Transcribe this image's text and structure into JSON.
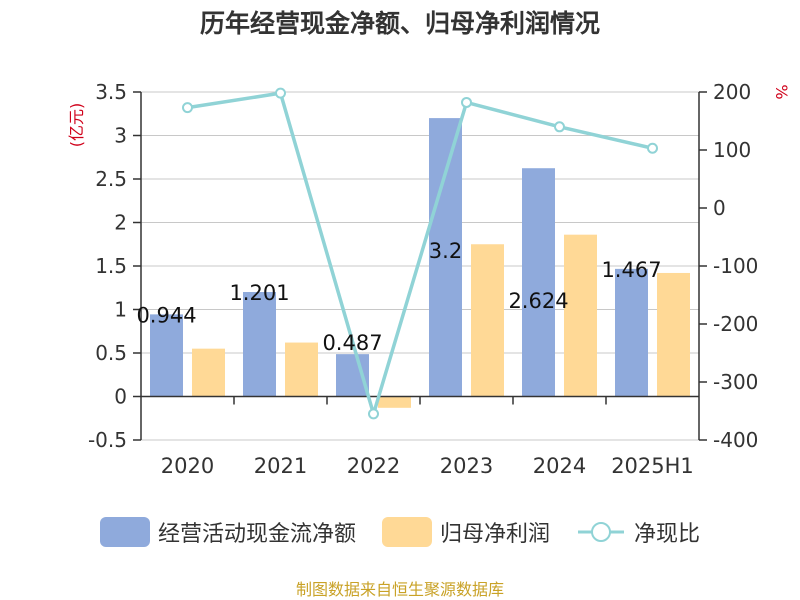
{
  "colors": {
    "operating_cash": "#8faadc",
    "net_profit": "#ffd996",
    "ratio_line": "#90d3d6",
    "axis": "#333333",
    "grid": "#c8c8c8",
    "unit_left": "#d0021b",
    "unit_right": "#d0021b",
    "source": "#c9a227"
  },
  "chart_data": {
    "type": "bar",
    "title": "历年经营现金净额、归母净利润情况",
    "categories": [
      "2020",
      "2021",
      "2022",
      "2023",
      "2024",
      "2025H1"
    ],
    "y_left": {
      "unit": "(亿元)",
      "ylim": [
        -0.5,
        3.5
      ],
      "ticks": [
        "-0.5",
        "0",
        "0.5",
        "1",
        "1.5",
        "2",
        "2.5",
        "3",
        "3.5"
      ]
    },
    "y_right": {
      "unit": "%",
      "ylim": [
        -400,
        200
      ],
      "ticks": [
        "-400",
        "-300",
        "-200",
        "-100",
        "0",
        "100",
        "200"
      ]
    },
    "grid": true,
    "legend_position": "bottom",
    "series": [
      {
        "name": "经营活动现金流净额",
        "kind": "bar",
        "axis": "left",
        "values": [
          0.944,
          1.201,
          0.487,
          3.2,
          2.624,
          1.467
        ],
        "labels": [
          "0.944",
          "1.201",
          "0.487",
          "3.2",
          "2.624",
          "1.467"
        ]
      },
      {
        "name": "归母净利润",
        "kind": "bar",
        "axis": "left",
        "values": [
          0.55,
          0.62,
          -0.13,
          1.75,
          1.86,
          1.42
        ]
      },
      {
        "name": "净现比",
        "kind": "line",
        "axis": "right",
        "values": [
          173,
          198,
          -355,
          182,
          140,
          103
        ]
      }
    ]
  },
  "source_note": "制图数据来自恒生聚源数据库"
}
